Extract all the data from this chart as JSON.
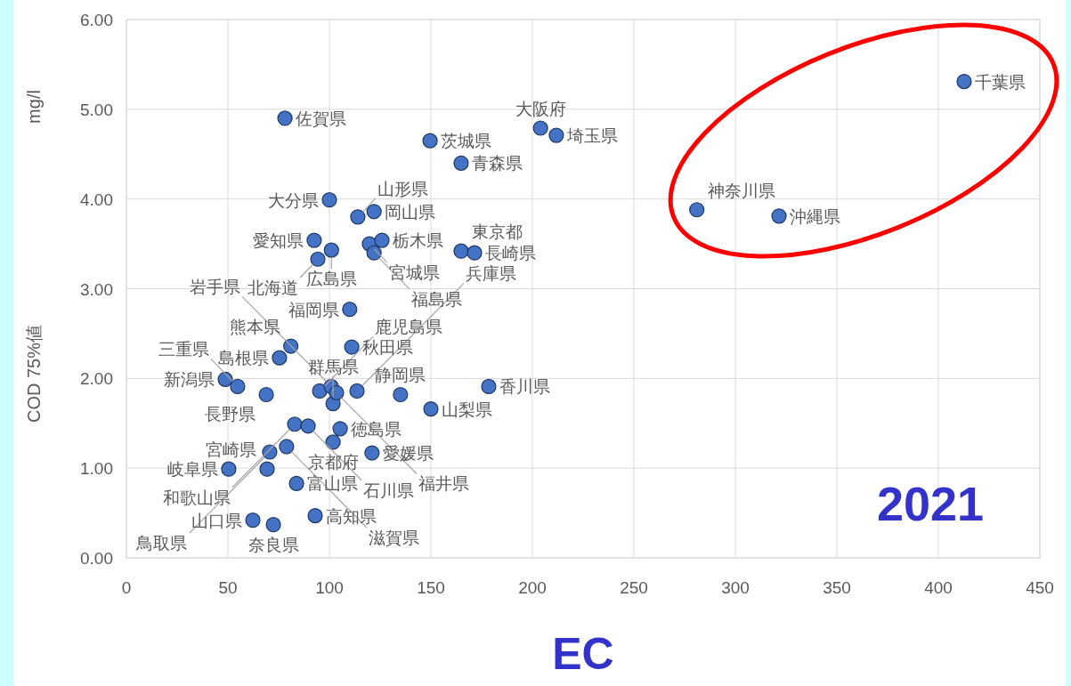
{
  "chart_data": {
    "type": "scatter",
    "xlabel": "EC",
    "ylabel": "COD 75%値",
    "xlim": [
      0,
      450
    ],
    "ylim": [
      0,
      6
    ],
    "xticks": [
      0,
      50,
      100,
      150,
      200,
      250,
      300,
      350,
      400,
      450
    ],
    "yticks": [
      {
        "value": 0,
        "label": "0.00"
      },
      {
        "value": 1,
        "label": "1.00"
      },
      {
        "value": 2,
        "label": "2.00"
      },
      {
        "value": 3,
        "label": "3.00"
      },
      {
        "value": 4,
        "label": "4.00"
      },
      {
        "value": 5,
        "label": "5.00"
      },
      {
        "value": 6,
        "label": "6.00"
      }
    ],
    "grid": true,
    "marker": "circle",
    "series": [
      {
        "color": "#4472c4",
        "x": [
          78.1,
          149.6,
          164.9,
          204,
          211.8,
          412.7,
          281,
          321.5,
          100,
          114,
          122,
          92.5,
          101,
          94.3,
          119.7,
          125.9,
          122,
          164.9,
          171.5,
          110,
          111,
          48.7,
          178.5,
          150,
          105.3,
          50.4,
          69.3,
          83.8,
          93,
          62.3,
          72.4,
          135,
          101.8,
          68.9,
          75.4,
          54.8,
          82.9,
          89.5,
          121,
          101.8,
          78.9,
          81,
          70.6,
          95.2,
          100.9,
          103.5,
          113.6
        ],
        "values": [
          4.9,
          4.65,
          4.4,
          4.79,
          4.71,
          5.31,
          3.88,
          3.81,
          3.99,
          3.8,
          3.86,
          3.54,
          3.43,
          3.33,
          3.5,
          3.54,
          3.4,
          3.42,
          3.4,
          2.77,
          2.35,
          1.99,
          1.91,
          1.66,
          1.44,
          0.99,
          0.99,
          0.83,
          0.47,
          0.42,
          0.37,
          1.82,
          1.72,
          1.82,
          2.23,
          1.91,
          1.49,
          1.47,
          1.17,
          1.29,
          1.24,
          2.36,
          1.18,
          1.86,
          1.91,
          1.84,
          1.86
        ]
      }
    ],
    "annotations": [
      {
        "text": "佐賀県",
        "x": 78.1,
        "y": 4.9
      },
      {
        "text": "茨城県",
        "x": 149.6,
        "y": 4.65
      },
      {
        "text": "青森県",
        "x": 164.9,
        "y": 4.4
      },
      {
        "text": "大阪府",
        "x": 204,
        "y": 4.79
      },
      {
        "text": "埼玉県",
        "x": 211.8,
        "y": 4.71
      },
      {
        "text": "千葉県",
        "x": 412.7,
        "y": 5.31
      },
      {
        "text": "神奈川県",
        "x": 281,
        "y": 3.88
      },
      {
        "text": "沖縄県",
        "x": 321.5,
        "y": 3.81
      },
      {
        "text": "大分県",
        "x": 100,
        "y": 3.99
      },
      {
        "text": "山形県",
        "x": 114,
        "y": 3.8
      },
      {
        "text": "岡山県",
        "x": 122,
        "y": 3.86
      },
      {
        "text": "愛知県",
        "x": 92.5,
        "y": 3.54
      },
      {
        "text": "広島県",
        "x": 101,
        "y": 3.43
      },
      {
        "text": "北海道",
        "x": 94.3,
        "y": 3.33
      },
      {
        "text": "宮城県",
        "x": 119.7,
        "y": 3.5
      },
      {
        "text": "栃木県",
        "x": 125.9,
        "y": 3.54
      },
      {
        "text": "福島県",
        "x": 122,
        "y": 3.4
      },
      {
        "text": "東京都",
        "x": 164.9,
        "y": 3.42
      },
      {
        "text": "長崎県",
        "x": 171.5,
        "y": 3.4
      },
      {
        "text": "福岡県",
        "x": 110,
        "y": 2.77
      },
      {
        "text": "秋田県",
        "x": 111,
        "y": 2.35
      },
      {
        "text": "新潟県",
        "x": 48.7,
        "y": 1.99
      },
      {
        "text": "香川県",
        "x": 178.5,
        "y": 1.91
      },
      {
        "text": "山梨県",
        "x": 150,
        "y": 1.66
      },
      {
        "text": "徳島県",
        "x": 105.3,
        "y": 1.44
      },
      {
        "text": "岐阜県",
        "x": 50.4,
        "y": 0.99
      },
      {
        "text": "宮崎県",
        "x": 69.3,
        "y": 0.99
      },
      {
        "text": "富山県",
        "x": 83.8,
        "y": 0.83
      },
      {
        "text": "高知県",
        "x": 93,
        "y": 0.47
      },
      {
        "text": "山口県",
        "x": 62.3,
        "y": 0.42
      },
      {
        "text": "奈良県",
        "x": 72.4,
        "y": 0.37
      },
      {
        "text": "静岡県",
        "x": 135,
        "y": 1.82
      },
      {
        "text": "群馬県",
        "x": 101.8,
        "y": 1.72
      },
      {
        "text": "長野県",
        "x": 68.9,
        "y": 1.82
      },
      {
        "text": "島根県",
        "x": 75.4,
        "y": 2.23
      },
      {
        "text": "三重県",
        "x": 54.8,
        "y": 1.91
      },
      {
        "text": "和歌山県",
        "x": 82.9,
        "y": 1.49
      },
      {
        "text": "石川県",
        "x": 89.5,
        "y": 1.47
      },
      {
        "text": "愛媛県",
        "x": 121,
        "y": 1.17
      },
      {
        "text": "京都府",
        "x": 101.8,
        "y": 1.29
      },
      {
        "text": "滋賀県",
        "x": 78.9,
        "y": 1.24
      },
      {
        "text": "熊本県",
        "x": 81,
        "y": 2.36
      },
      {
        "text": "鳥取県",
        "x": 70.6,
        "y": 1.18
      },
      {
        "text": "鹿児島県",
        "x": 95.2,
        "y": 1.86
      },
      {
        "text": "岩手県",
        "x": 100.9,
        "y": 1.91
      },
      {
        "text": "福井県",
        "x": 103.5,
        "y": 1.84
      },
      {
        "text": "兵庫県",
        "x": 113.6,
        "y": 1.86
      },
      "mg/l",
      "2021"
    ]
  }
}
